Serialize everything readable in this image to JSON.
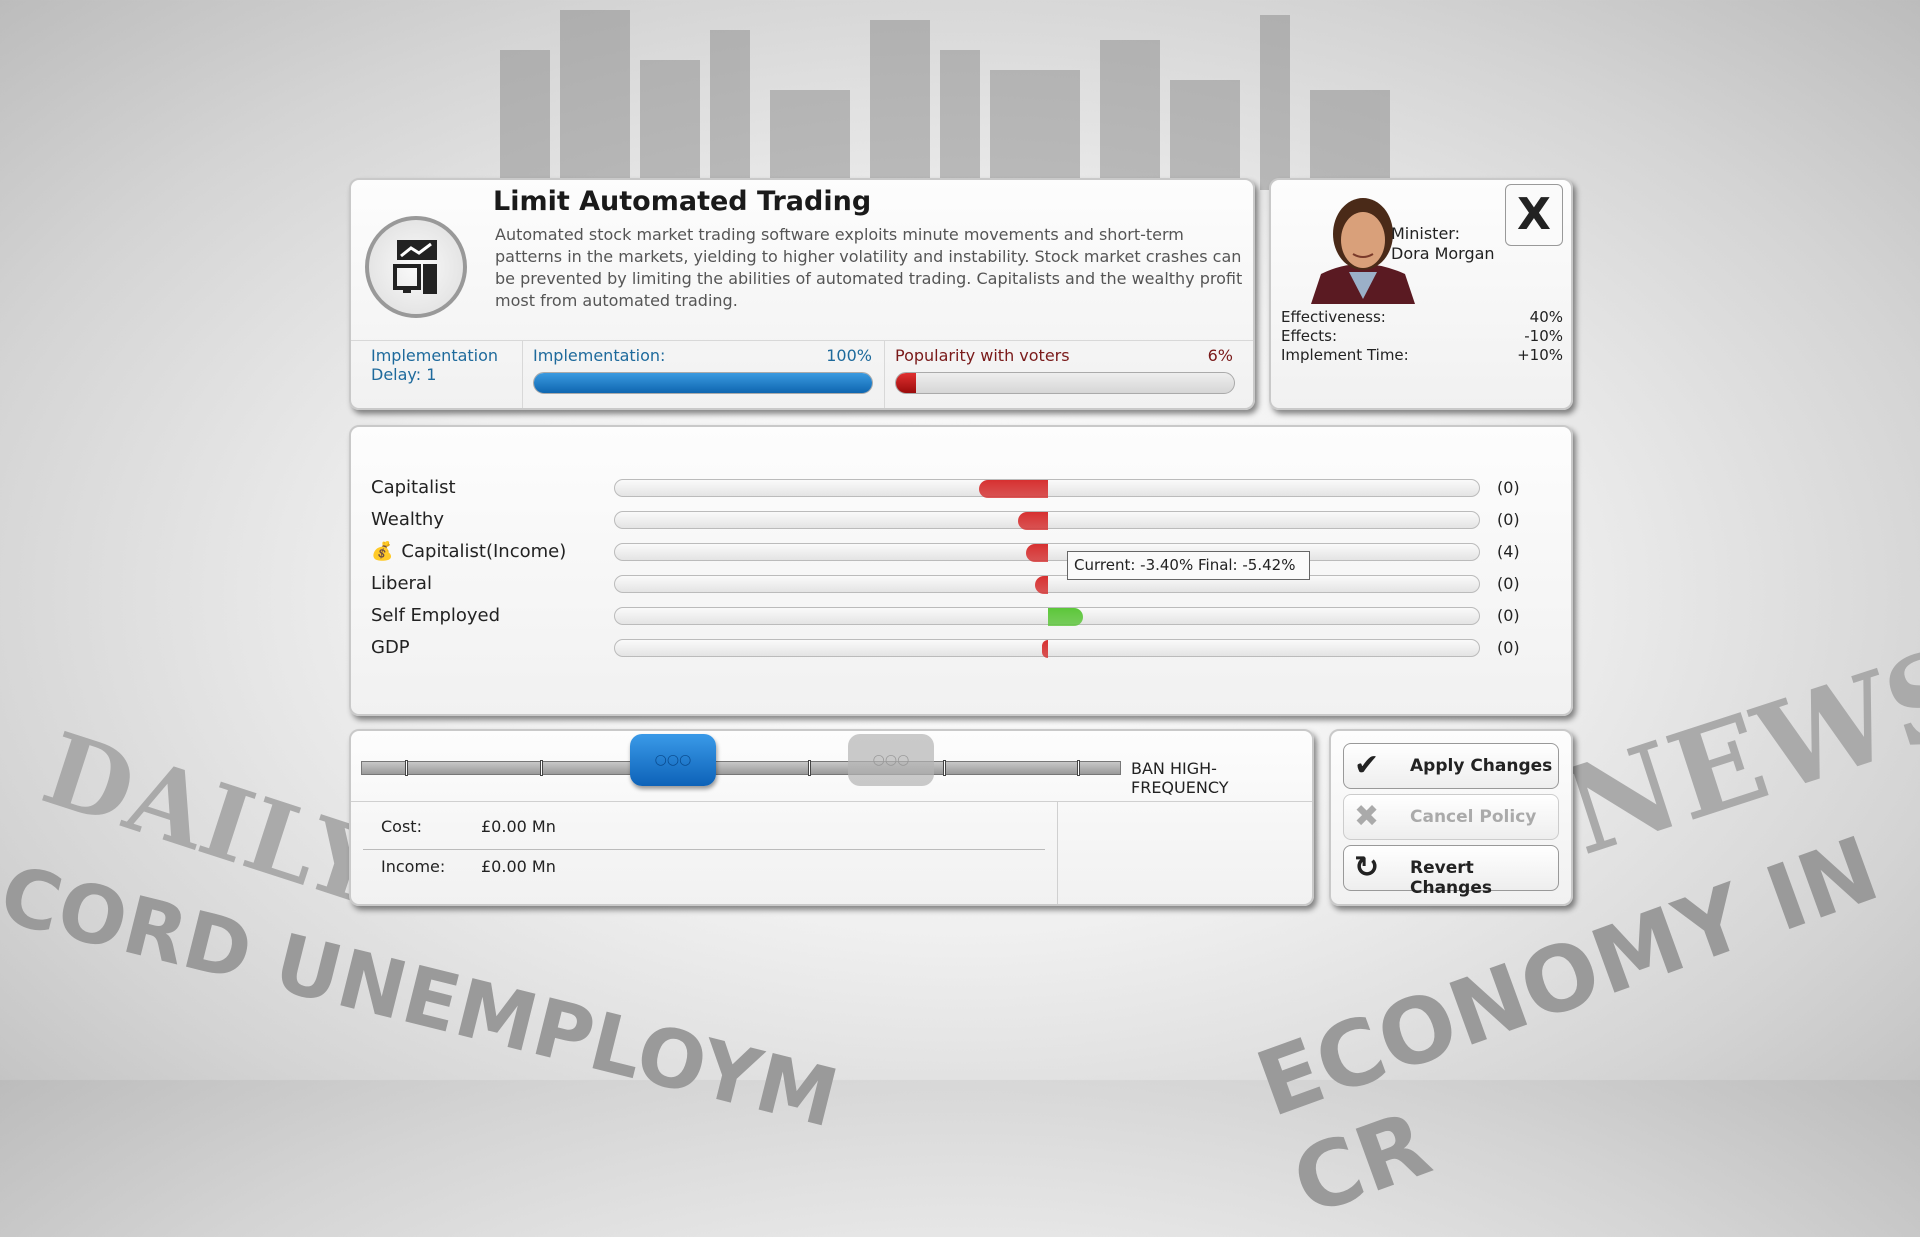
{
  "policy": {
    "title": "Limit Automated Trading",
    "icon": "stock-chart-computer-icon",
    "description": "Automated stock market trading software exploits minute movements and short-term patterns in the markets, yielding to higher volatility and instability. Stock market crashes can be prevented by limiting the abilities of automated trading. Capitalists and the wealthy profit most from automated trading.",
    "delay_label": "Implementation",
    "delay_value": "Delay: 1",
    "implementation_label": "Implementation:",
    "implementation_value": "100%",
    "implementation_fraction": 1.0,
    "popularity_label": "Popularity with voters",
    "popularity_value": "6%",
    "popularity_fraction": 0.06
  },
  "minister": {
    "label": "Minister:",
    "name": "Dora Morgan",
    "close_label": "X",
    "stats": [
      {
        "label": "Effectiveness:",
        "value": "40%"
      },
      {
        "label": "Effects:",
        "value": "-10%"
      },
      {
        "label": "Implement Time:",
        "value": "+10%"
      }
    ]
  },
  "effects": [
    {
      "label": "Capitalist",
      "count": "(0)",
      "level": -0.16,
      "color": "#d63030"
    },
    {
      "label": "Wealthy",
      "count": "(0)",
      "level": -0.07,
      "color": "#d63030"
    },
    {
      "label": "Capitalist(Income)",
      "count": "(4)",
      "level": -0.05,
      "color": "#d63030",
      "has_icon": true
    },
    {
      "label": "Liberal",
      "count": "(0)",
      "level": -0.03,
      "color": "#d63030"
    },
    {
      "label": "Self Employed",
      "count": "(0)",
      "level": 0.08,
      "color": "#5cc63a"
    },
    {
      "label": "GDP",
      "count": "(0)",
      "level": -0.015,
      "color": "#d63030"
    }
  ],
  "tooltip": "Current: -3.40% Final: -5.42%",
  "slider": {
    "option_label": "BAN HIGH-FREQUENCY",
    "current_level": 0.4,
    "previous_level": 0.8
  },
  "finance": {
    "cost_label": "Cost:",
    "cost_value": "£0.00 Mn",
    "income_label": "Income:",
    "income_value": "£0.00 Mn"
  },
  "buttons": {
    "apply": "Apply Changes",
    "cancel": "Cancel Policy",
    "revert": "Revert Changes"
  },
  "background": {
    "headline1": "DAILY",
    "headline2": "CORD UNEMPLOYM",
    "headline3": "NEWS",
    "headline4": "ECONOMY IN CR"
  }
}
